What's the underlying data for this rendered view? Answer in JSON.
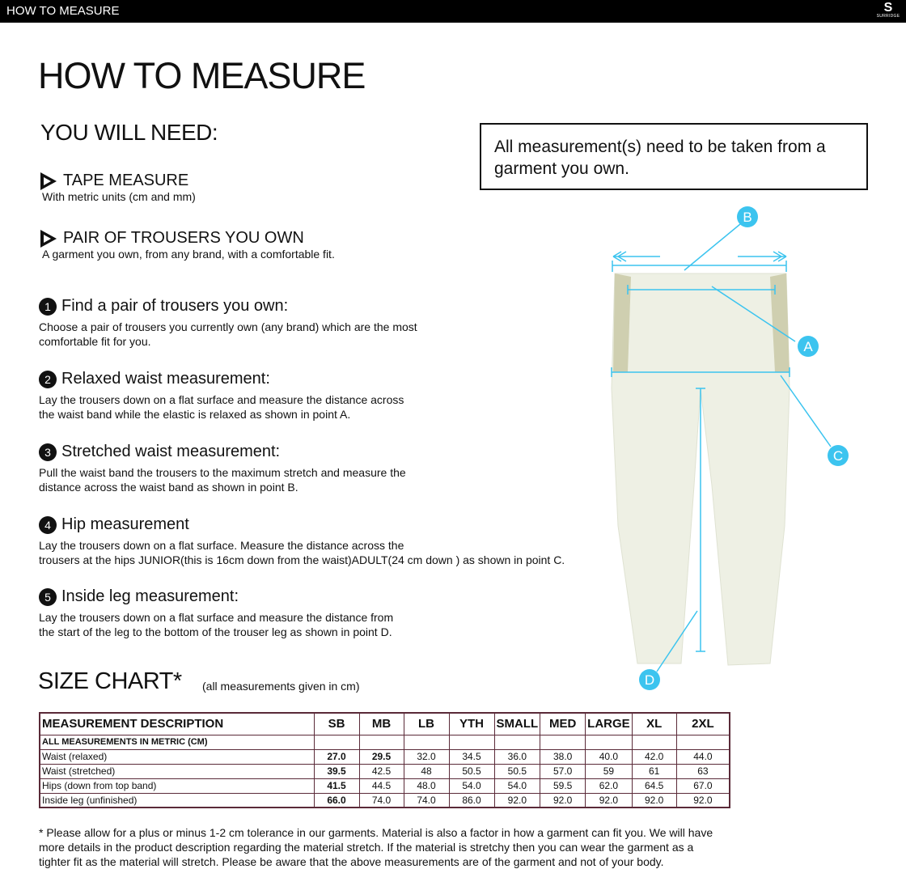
{
  "topbar": {
    "title": "HOW TO MEASURE",
    "logo_text": "SURRIDGE"
  },
  "page_title": "HOW TO MEASURE",
  "you_will_need": {
    "heading": "YOU WILL NEED:",
    "items": [
      {
        "title": "TAPE MEASURE",
        "subtitle": "With metric units (cm and mm)"
      },
      {
        "title": "PAIR OF TROUSERS YOU OWN",
        "subtitle": "A garment you own, from any brand, with a comfortable fit."
      }
    ]
  },
  "note": "All measurement(s) need to be taken from a garment you own.",
  "steps": [
    {
      "num": "1",
      "title": "Find a pair of trousers you own:",
      "text": "Choose a pair of trousers you currently own (any brand) which are the most\ncomfortable fit for you."
    },
    {
      "num": "2",
      "title": "Relaxed waist measurement:",
      "text": "Lay the trousers down on a flat surface and measure the distance across\nthe waist band while the elastic is relaxed as shown in point A."
    },
    {
      "num": "3",
      "title": "Stretched waist measurement:",
      "text": "Pull the waist band the trousers to the maximum stretch and measure the\ndistance across the waist band as shown in point B."
    },
    {
      "num": "4",
      "title": "Hip measurement",
      "text": "Lay the trousers down on a flat surface. Measure the distance across the\ntrousers at the hips JUNIOR(this is 16cm down from the waist)ADULT(24 cm down ) as shown in point C."
    },
    {
      "num": "5",
      "title": "Inside leg measurement:",
      "text": "Lay the trousers down on a flat surface and measure the distance from\nthe start of the leg to the bottom of the trouser leg as shown in point D."
    }
  ],
  "diagram": {
    "labels": [
      "A",
      "B",
      "C",
      "D"
    ],
    "accent": "#3cc4ef",
    "garment_color": "#eef0e4"
  },
  "size_chart": {
    "heading": "SIZE CHART*",
    "note": "(all measurements given in cm)",
    "headers": [
      "MEASUREMENT DESCRIPTION",
      "SB",
      "MB",
      "LB",
      "YTH",
      "SMALL",
      "MED",
      "LARGE",
      "XL",
      "2XL"
    ],
    "subheader": "ALL MEASUREMENTS IN METRIC (CM)",
    "rows": [
      {
        "label": "Waist (relaxed)",
        "values": [
          "27.0",
          "29.5",
          "32.0",
          "34.5",
          "36.0",
          "38.0",
          "40.0",
          "42.0",
          "44.0"
        ]
      },
      {
        "label": "Waist (stretched)",
        "values": [
          "39.5",
          "42.5",
          "48",
          "50.5",
          "50.5",
          "57.0",
          "59",
          "61",
          "63"
        ]
      },
      {
        "label": "Hips (down from top band)",
        "values": [
          "41.5",
          "44.5",
          "48.0",
          "54.0",
          "54.0",
          "59.5",
          "62.0",
          "64.5",
          "67.0"
        ]
      },
      {
        "label": "Inside leg (unfinished)",
        "values": [
          "66.0",
          "74.0",
          "74.0",
          "86.0",
          "92.0",
          "92.0",
          "92.0",
          "92.0",
          "92.0"
        ]
      }
    ]
  },
  "footnote": "* Please allow for a plus or minus 1-2 cm tolerance in our garments. Material is also a factor in how a garment can fit you. We will have more details in the product description regarding the material stretch.  If the material is stretchy then you can wear the garment as a tighter fit as the material will stretch.  Please be aware that the above measurements are of the garment and not of your body."
}
